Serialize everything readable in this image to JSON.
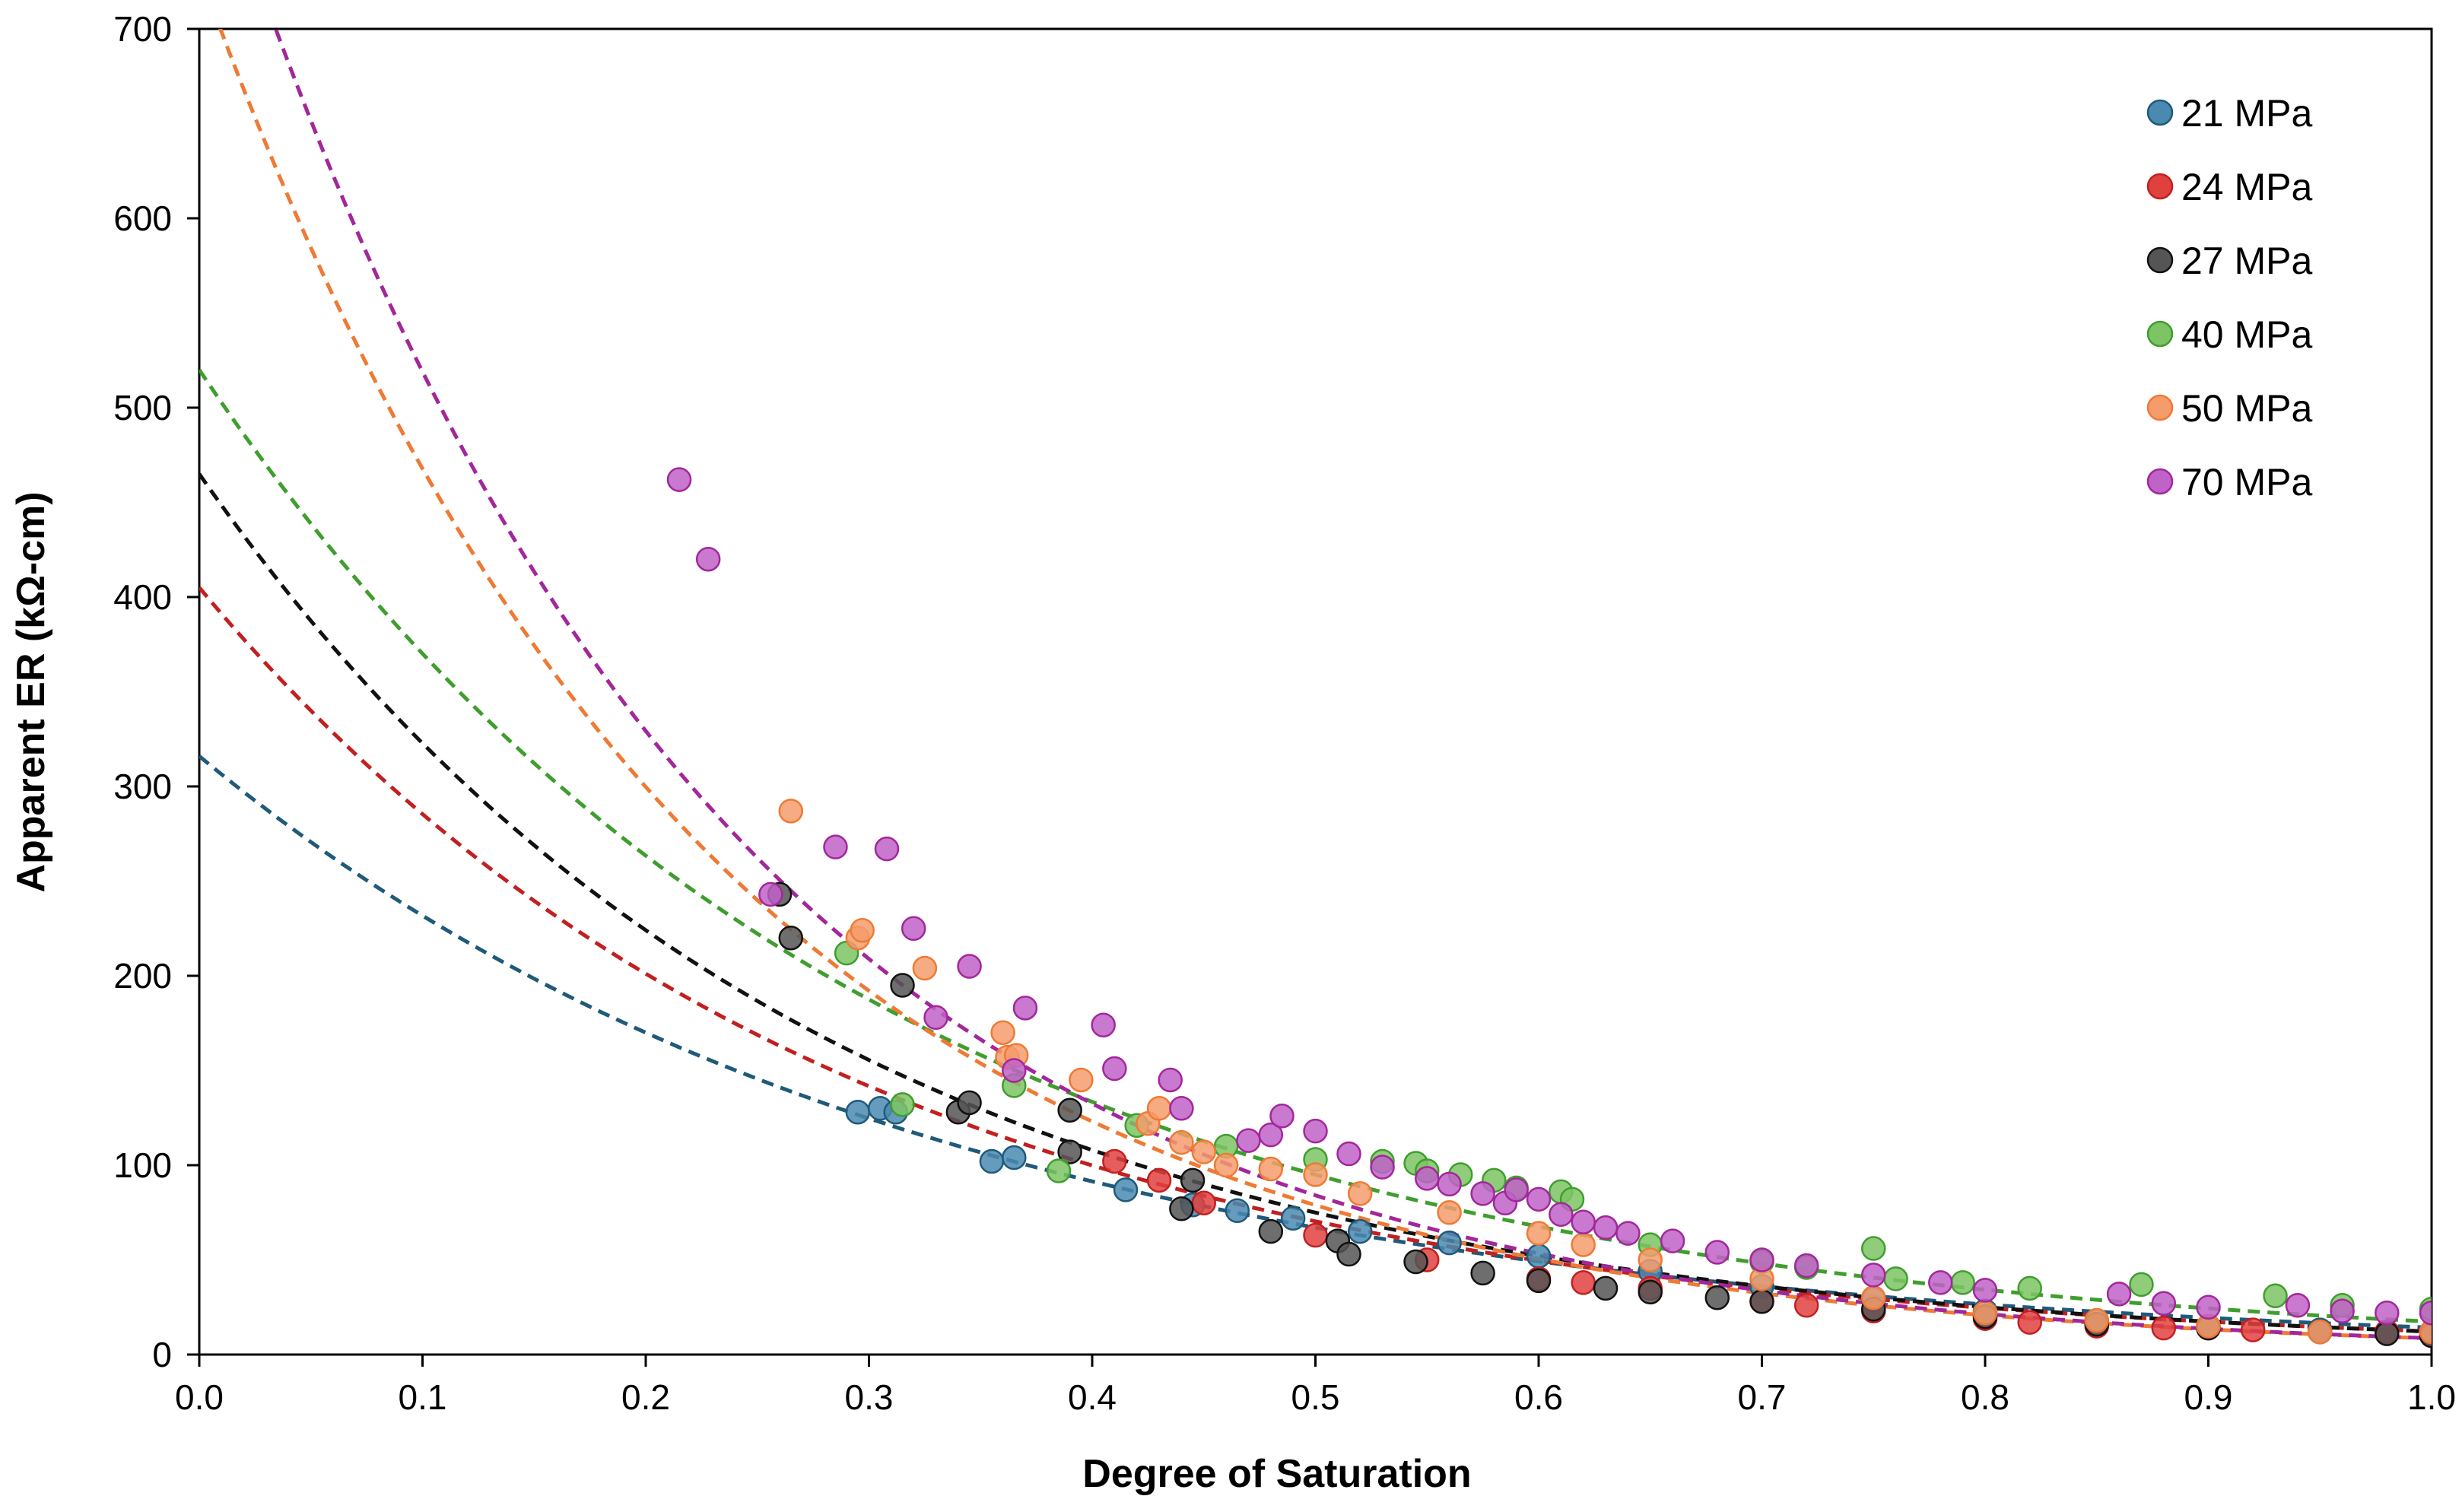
{
  "chart_data": {
    "type": "scatter",
    "title": "",
    "xlabel": "Degree of Saturation",
    "ylabel": "Apparent ER (kΩ-cm)",
    "xlim": [
      0.0,
      1.0
    ],
    "ylim": [
      0,
      700
    ],
    "x_ticks": [
      0.0,
      0.1,
      0.2,
      0.3,
      0.4,
      0.5,
      0.6,
      0.7,
      0.8,
      0.9,
      1.0
    ],
    "x_tick_labels": [
      "0.0",
      "0.1",
      "0.2",
      "0.3",
      "0.4",
      "0.5",
      "0.6",
      "0.7",
      "0.8",
      "0.9",
      "1.0"
    ],
    "y_ticks": [
      0,
      100,
      200,
      300,
      400,
      500,
      600,
      700
    ],
    "y_tick_labels": [
      "0",
      "100",
      "200",
      "300",
      "400",
      "500",
      "600",
      "700"
    ],
    "grid": false,
    "legend_position": "top-right",
    "trendline_style": "dashed exponential fit per series",
    "series": [
      {
        "name": "21 MPa",
        "color": "#4a8ab0",
        "trend_color": "#1f5a7a",
        "fit": {
          "a": 316,
          "b": 3.1
        },
        "points": [
          [
            0.295,
            128
          ],
          [
            0.305,
            130
          ],
          [
            0.312,
            128
          ],
          [
            0.355,
            102
          ],
          [
            0.365,
            104
          ],
          [
            0.415,
            87
          ],
          [
            0.445,
            79
          ],
          [
            0.465,
            76
          ],
          [
            0.49,
            72
          ],
          [
            0.52,
            65
          ],
          [
            0.56,
            59
          ],
          [
            0.6,
            52
          ],
          [
            0.65,
            44
          ],
          [
            0.7,
            36
          ],
          [
            0.75,
            29
          ],
          [
            0.8,
            23
          ],
          [
            0.85,
            18
          ],
          [
            0.9,
            15
          ],
          [
            0.95,
            13
          ],
          [
            0.98,
            12
          ],
          [
            1.0,
            12
          ]
        ]
      },
      {
        "name": "24 MPa",
        "color": "#e0413f",
        "trend_color": "#c22020",
        "fit": {
          "a": 405,
          "b": 3.5
        },
        "points": [
          [
            0.41,
            102
          ],
          [
            0.43,
            92
          ],
          [
            0.45,
            80
          ],
          [
            0.5,
            63
          ],
          [
            0.55,
            50
          ],
          [
            0.6,
            40
          ],
          [
            0.62,
            38
          ],
          [
            0.65,
            35
          ],
          [
            0.7,
            28
          ],
          [
            0.72,
            26
          ],
          [
            0.75,
            23
          ],
          [
            0.8,
            19
          ],
          [
            0.82,
            17
          ],
          [
            0.85,
            15
          ],
          [
            0.88,
            14
          ],
          [
            0.9,
            14
          ],
          [
            0.92,
            13
          ],
          [
            0.95,
            12
          ],
          [
            0.98,
            12
          ],
          [
            1.0,
            11
          ]
        ]
      },
      {
        "name": "27 MPa",
        "color": "#555555",
        "trend_color": "#111111",
        "fit": {
          "a": 465,
          "b": 3.65
        },
        "points": [
          [
            0.26,
            243
          ],
          [
            0.265,
            220
          ],
          [
            0.315,
            195
          ],
          [
            0.34,
            128
          ],
          [
            0.345,
            133
          ],
          [
            0.39,
            129
          ],
          [
            0.39,
            107
          ],
          [
            0.44,
            77
          ],
          [
            0.445,
            92
          ],
          [
            0.48,
            65
          ],
          [
            0.51,
            60
          ],
          [
            0.515,
            53
          ],
          [
            0.545,
            49
          ],
          [
            0.575,
            43
          ],
          [
            0.6,
            39
          ],
          [
            0.63,
            35
          ],
          [
            0.65,
            33
          ],
          [
            0.68,
            30
          ],
          [
            0.7,
            28
          ],
          [
            0.75,
            24
          ],
          [
            0.8,
            20
          ],
          [
            0.85,
            16
          ],
          [
            0.9,
            14
          ],
          [
            0.95,
            12
          ],
          [
            0.98,
            11
          ],
          [
            1.0,
            10
          ]
        ]
      },
      {
        "name": "40 MPa",
        "color": "#7cc464",
        "trend_color": "#3f9e2e",
        "fit": {
          "a": 520,
          "b": 3.4
        },
        "points": [
          [
            0.29,
            212
          ],
          [
            0.315,
            132
          ],
          [
            0.365,
            142
          ],
          [
            0.385,
            97
          ],
          [
            0.42,
            121
          ],
          [
            0.46,
            110
          ],
          [
            0.5,
            103
          ],
          [
            0.53,
            102
          ],
          [
            0.545,
            101
          ],
          [
            0.55,
            97
          ],
          [
            0.565,
            95
          ],
          [
            0.58,
            92
          ],
          [
            0.59,
            88
          ],
          [
            0.61,
            86
          ],
          [
            0.615,
            82
          ],
          [
            0.65,
            58
          ],
          [
            0.7,
            49
          ],
          [
            0.72,
            46
          ],
          [
            0.75,
            56
          ],
          [
            0.76,
            40
          ],
          [
            0.79,
            38
          ],
          [
            0.82,
            35
          ],
          [
            0.87,
            37
          ],
          [
            0.93,
            31
          ],
          [
            0.96,
            26
          ],
          [
            1.0,
            24
          ]
        ]
      },
      {
        "name": "50 MPa",
        "color": "#f49c6c",
        "trend_color": "#ef7a34",
        "fit": {
          "a": 730,
          "b": 4.45
        },
        "points": [
          [
            0.265,
            287
          ],
          [
            0.295,
            220
          ],
          [
            0.297,
            224
          ],
          [
            0.325,
            204
          ],
          [
            0.36,
            170
          ],
          [
            0.362,
            157
          ],
          [
            0.366,
            158
          ],
          [
            0.395,
            145
          ],
          [
            0.425,
            122
          ],
          [
            0.43,
            130
          ],
          [
            0.44,
            112
          ],
          [
            0.45,
            107
          ],
          [
            0.46,
            100
          ],
          [
            0.48,
            98
          ],
          [
            0.5,
            95
          ],
          [
            0.52,
            85
          ],
          [
            0.56,
            75
          ],
          [
            0.6,
            64
          ],
          [
            0.62,
            58
          ],
          [
            0.65,
            50
          ],
          [
            0.7,
            40
          ],
          [
            0.75,
            30
          ],
          [
            0.8,
            22
          ],
          [
            0.85,
            18
          ],
          [
            0.9,
            15
          ],
          [
            0.95,
            12
          ],
          [
            1.0,
            12
          ]
        ]
      },
      {
        "name": "70 MPa",
        "color": "#c062c8",
        "trend_color": "#a2279a",
        "fit": {
          "a": 818,
          "b": 4.55
        },
        "points": [
          [
            0.215,
            462
          ],
          [
            0.228,
            420
          ],
          [
            0.256,
            243
          ],
          [
            0.285,
            268
          ],
          [
            0.308,
            267
          ],
          [
            0.32,
            225
          ],
          [
            0.33,
            178
          ],
          [
            0.345,
            205
          ],
          [
            0.365,
            150
          ],
          [
            0.37,
            183
          ],
          [
            0.405,
            174
          ],
          [
            0.41,
            151
          ],
          [
            0.435,
            145
          ],
          [
            0.44,
            130
          ],
          [
            0.47,
            113
          ],
          [
            0.48,
            116
          ],
          [
            0.485,
            126
          ],
          [
            0.5,
            118
          ],
          [
            0.515,
            106
          ],
          [
            0.53,
            99
          ],
          [
            0.55,
            93
          ],
          [
            0.56,
            90
          ],
          [
            0.575,
            85
          ],
          [
            0.585,
            80
          ],
          [
            0.59,
            87
          ],
          [
            0.6,
            82
          ],
          [
            0.61,
            74
          ],
          [
            0.62,
            70
          ],
          [
            0.63,
            67
          ],
          [
            0.64,
            64
          ],
          [
            0.66,
            60
          ],
          [
            0.68,
            54
          ],
          [
            0.7,
            50
          ],
          [
            0.72,
            47
          ],
          [
            0.75,
            42
          ],
          [
            0.78,
            38
          ],
          [
            0.8,
            34
          ],
          [
            0.86,
            32
          ],
          [
            0.88,
            27
          ],
          [
            0.9,
            25
          ],
          [
            0.94,
            26
          ],
          [
            0.96,
            23
          ],
          [
            0.98,
            22
          ],
          [
            1.0,
            22
          ]
        ]
      }
    ]
  }
}
